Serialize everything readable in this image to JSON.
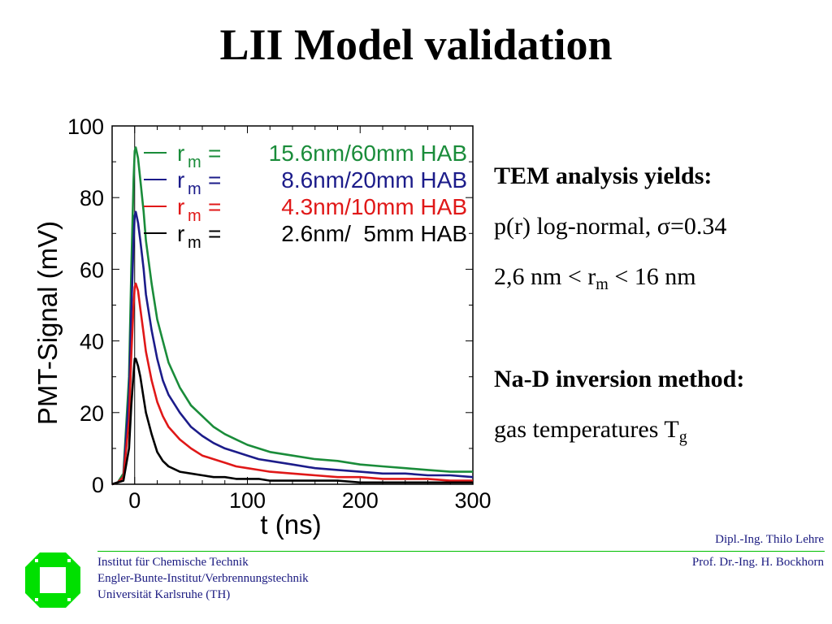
{
  "slide": {
    "title": "LII Model validation",
    "right_text": {
      "heading1": "TEM analysis yields:",
      "line1": "p(r) log-normal, σ=0.34",
      "line2_pre": "2,6 nm < r",
      "line2_sub": "m",
      "line2_post": " < 16 nm",
      "heading2": "Na-D inversion method:",
      "line3_pre": "gas temperatures  T",
      "line3_sub": "g"
    },
    "footer": {
      "author1": "Dipl.-Ing. Thilo Lehre",
      "author2": "Prof. Dr.-Ing. H. Bockhorn",
      "inst1": "Institut für Chemische Technik",
      "inst2": "Engler-Bunte-Institut/Verbrennungstechnik",
      "inst3": "Universität Karlsruhe (TH)"
    },
    "colors": {
      "logo": "#00e000",
      "footer_line": "#00c000",
      "footer_text": "#1a1a80"
    }
  },
  "chart_data": {
    "type": "line",
    "title": "",
    "xlabel": "t (ns)",
    "ylabel": "PMT-Signal (mV)",
    "xlim": [
      -20,
      300
    ],
    "ylim": [
      0,
      100
    ],
    "xticks": [
      "0",
      "100",
      "200",
      "300"
    ],
    "yticks": [
      "0",
      "20",
      "40",
      "60",
      "80",
      "100"
    ],
    "grid": false,
    "legend_position": "top-right",
    "x": [
      -20,
      -15,
      -10,
      -5,
      -3,
      -1,
      0,
      1,
      3,
      5,
      8,
      10,
      15,
      20,
      25,
      30,
      40,
      50,
      60,
      70,
      80,
      90,
      100,
      110,
      120,
      140,
      160,
      180,
      200,
      220,
      240,
      260,
      280,
      300
    ],
    "series": [
      {
        "name": "15.6nm/60mm HAB",
        "color": "#1a8c3a",
        "values": [
          0,
          0.5,
          3,
          30,
          60,
          85,
          93,
          94,
          91,
          85,
          76,
          68,
          56,
          46,
          40,
          34,
          27,
          22,
          19,
          16,
          14,
          12.5,
          11,
          10,
          9,
          8,
          7,
          6.5,
          5.5,
          5,
          4.5,
          4,
          3.5,
          3.5
        ]
      },
      {
        "name": "8.6nm/20mm HAB",
        "color": "#1c1c8a",
        "values": [
          0,
          0.5,
          2,
          25,
          48,
          68,
          75,
          76,
          73,
          68,
          60,
          53,
          43,
          35,
          29,
          25,
          20,
          16,
          13.5,
          11.5,
          10,
          9,
          8,
          7,
          6.5,
          5.5,
          4.5,
          4,
          3.5,
          3,
          3,
          2.5,
          2.5,
          2
        ]
      },
      {
        "name": "4.3nm/10mm HAB",
        "color": "#e01818",
        "values": [
          0,
          0.5,
          2,
          18,
          36,
          50,
          55,
          56,
          54,
          49,
          42,
          37,
          29,
          23,
          19,
          16,
          12.5,
          10,
          8,
          7,
          6,
          5,
          4.5,
          4,
          3.5,
          3,
          2.5,
          2,
          2,
          1.5,
          1.5,
          1.5,
          1,
          1
        ]
      },
      {
        "name": "2.6nm/  5mm HAB",
        "color": "#000000",
        "values": [
          0,
          0.5,
          1,
          10,
          22,
          31,
          35,
          35,
          33,
          30,
          24,
          20,
          14,
          9,
          6.5,
          5,
          3.5,
          3,
          2.5,
          2,
          2,
          1.5,
          1.5,
          1.5,
          1,
          1,
          1,
          1,
          0.5,
          0.5,
          0.5,
          0.5,
          0.5,
          0.5
        ]
      }
    ],
    "legend_prefix_main": "r",
    "legend_prefix_sub": "m",
    "legend_eq": "="
  }
}
